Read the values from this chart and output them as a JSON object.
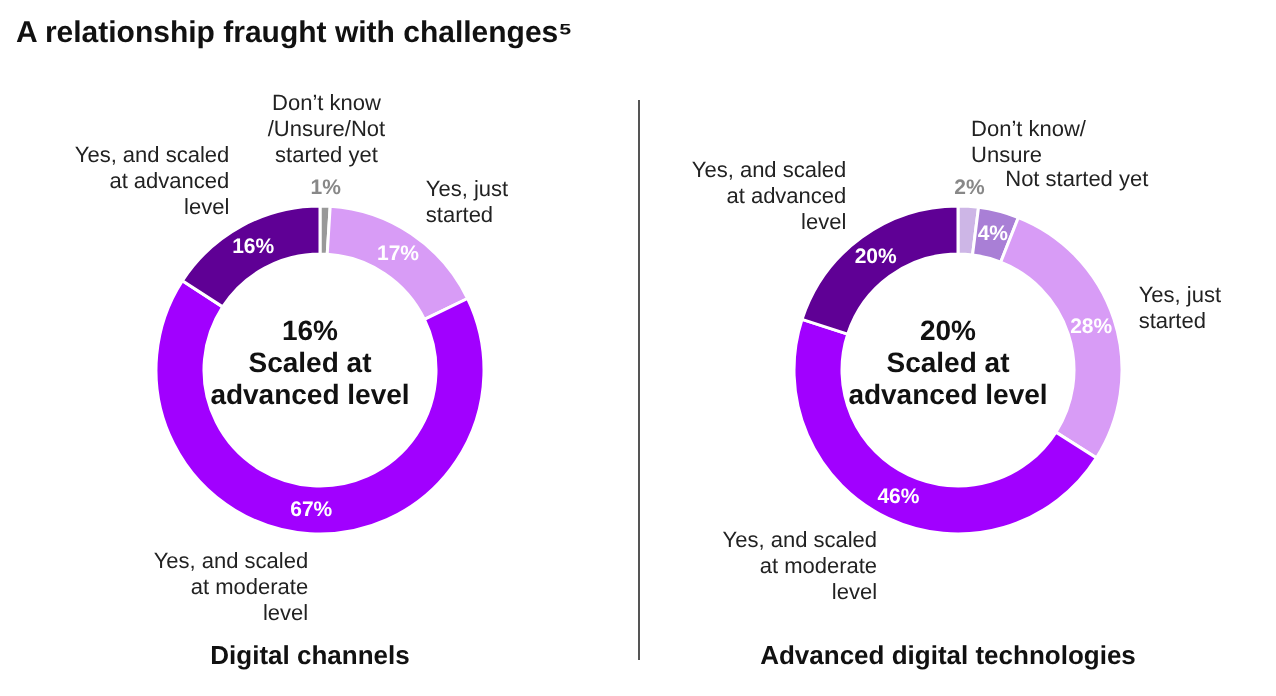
{
  "chart_data": [
    {
      "type": "donut",
      "title": "A relationship fraught with challenges⁵",
      "xlabel": "Digital channels",
      "annotations": [
        "16%\nScaled at\nadvanced level"
      ],
      "categories": [
        "Don’t know /Unsure/Not started yet",
        "Yes, just started",
        "Yes, and scaled at moderate level",
        "Yes, and scaled at advanced level"
      ],
      "values": [
        1,
        17,
        67,
        16
      ],
      "value_labels": [
        "1%",
        "17%",
        "67%",
        "16%"
      ],
      "colors": [
        "#999999",
        "#d89cf6",
        "#a100ff",
        "#5f0095"
      ]
    },
    {
      "type": "donut",
      "xlabel": "Advanced digital technologies",
      "annotations": [
        "20%\nScaled at\nadvanced level"
      ],
      "categories": [
        "Don’t know/ Unsure",
        "Not started yet",
        "Yes, just started",
        "Yes, and scaled at moderate level",
        "Yes, and scaled at advanced level"
      ],
      "values": [
        2,
        4,
        28,
        46,
        20
      ],
      "value_labels": [
        "2%",
        "4%",
        "28%",
        "46%",
        "20%"
      ],
      "colors": [
        "#cdb6e6",
        "#a97fd6",
        "#d89cf6",
        "#a100ff",
        "#5f0095"
      ]
    }
  ]
}
